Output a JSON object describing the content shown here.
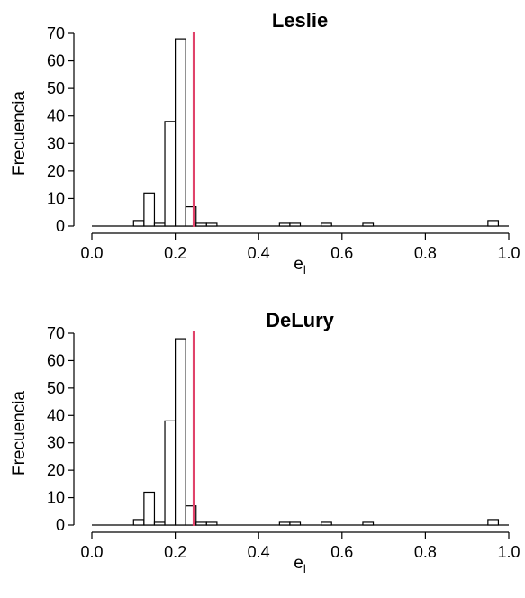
{
  "chart_data": [
    {
      "type": "bar",
      "title": "Leslie",
      "ylabel": "Frecuencia",
      "xlabel": "e",
      "xlabel_sub": "l",
      "xlim": [
        0.0,
        1.0
      ],
      "ylim": [
        0,
        70
      ],
      "x_ticks": [
        "0.0",
        "0.2",
        "0.4",
        "0.6",
        "0.8",
        "1.0"
      ],
      "y_ticks": [
        "0",
        "10",
        "20",
        "30",
        "40",
        "50",
        "60",
        "70"
      ],
      "bin_width": 0.025,
      "bins": [
        {
          "start": 0.1,
          "count": 2
        },
        {
          "start": 0.125,
          "count": 12
        },
        {
          "start": 0.15,
          "count": 1
        },
        {
          "start": 0.175,
          "count": 38
        },
        {
          "start": 0.2,
          "count": 68
        },
        {
          "start": 0.225,
          "count": 7
        },
        {
          "start": 0.25,
          "count": 1
        },
        {
          "start": 0.275,
          "count": 1
        },
        {
          "start": 0.45,
          "count": 1
        },
        {
          "start": 0.475,
          "count": 1
        },
        {
          "start": 0.55,
          "count": 1
        },
        {
          "start": 0.65,
          "count": 1
        },
        {
          "start": 0.95,
          "count": 2
        }
      ],
      "reference_line": {
        "x": 0.245,
        "color": "#e0436a"
      },
      "grid": false,
      "legend": "none"
    },
    {
      "type": "bar",
      "title": "DeLury",
      "ylabel": "Frecuencia",
      "xlabel": "e",
      "xlabel_sub": "l",
      "xlim": [
        0.0,
        1.0
      ],
      "ylim": [
        0,
        70
      ],
      "x_ticks": [
        "0.0",
        "0.2",
        "0.4",
        "0.6",
        "0.8",
        "1.0"
      ],
      "y_ticks": [
        "0",
        "10",
        "20",
        "30",
        "40",
        "50",
        "60",
        "70"
      ],
      "bin_width": 0.025,
      "bins": [
        {
          "start": 0.1,
          "count": 2
        },
        {
          "start": 0.125,
          "count": 12
        },
        {
          "start": 0.15,
          "count": 1
        },
        {
          "start": 0.175,
          "count": 38
        },
        {
          "start": 0.2,
          "count": 68
        },
        {
          "start": 0.225,
          "count": 7
        },
        {
          "start": 0.25,
          "count": 1
        },
        {
          "start": 0.275,
          "count": 1
        },
        {
          "start": 0.45,
          "count": 1
        },
        {
          "start": 0.475,
          "count": 1
        },
        {
          "start": 0.55,
          "count": 1
        },
        {
          "start": 0.65,
          "count": 1
        },
        {
          "start": 0.95,
          "count": 2
        }
      ],
      "reference_line": {
        "x": 0.245,
        "color": "#e0436a"
      },
      "grid": false,
      "legend": "none"
    }
  ]
}
